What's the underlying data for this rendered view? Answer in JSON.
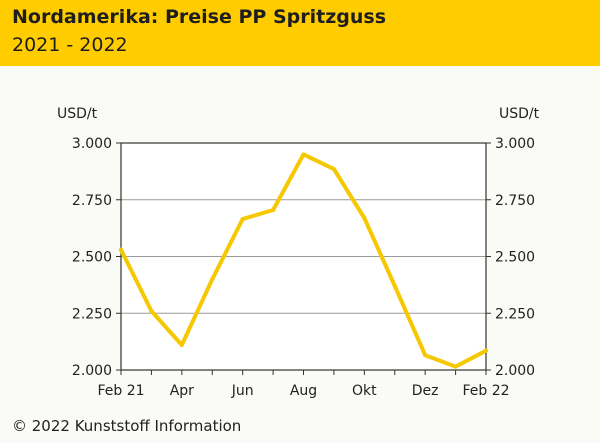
{
  "header": {
    "title": "Nordamerika: Preise PP Spritzguss",
    "subtitle": "2021 - 2022"
  },
  "colors": {
    "accent": "#ffcc00",
    "line": "#f5c800",
    "grid": "#9a9a9a",
    "axis": "#333333"
  },
  "chart_data": {
    "type": "line",
    "title": "Nordamerika: Preise PP Spritzguss",
    "subtitle": "2021 - 2022",
    "ylabel_left": "USD/t",
    "ylabel_right": "USD/t",
    "ylim": [
      2000,
      3000
    ],
    "yticks": [
      2000,
      2250,
      2500,
      2750,
      3000
    ],
    "ytick_labels": [
      "2.000",
      "2.250",
      "2.500",
      "2.750",
      "3.000"
    ],
    "xlim": [
      0,
      12
    ],
    "x_tick_positions": [
      0,
      2,
      4,
      6,
      8,
      10,
      12
    ],
    "x_tick_labels": [
      "Feb 21",
      "Apr",
      "Jun",
      "Aug",
      "Okt",
      "Dez",
      "Feb 22"
    ],
    "grid": true,
    "series": [
      {
        "name": "PP Spritzguss",
        "x": [
          0,
          1,
          2,
          3,
          4,
          5,
          6,
          7,
          8,
          9,
          10,
          11,
          12
        ],
        "values": [
          2530,
          2260,
          2110,
          2400,
          2665,
          2705,
          2950,
          2885,
          2670,
          2370,
          2065,
          2015,
          2085
        ]
      }
    ]
  },
  "footer": {
    "copyright": "© 2022 Kunststoff Information"
  }
}
